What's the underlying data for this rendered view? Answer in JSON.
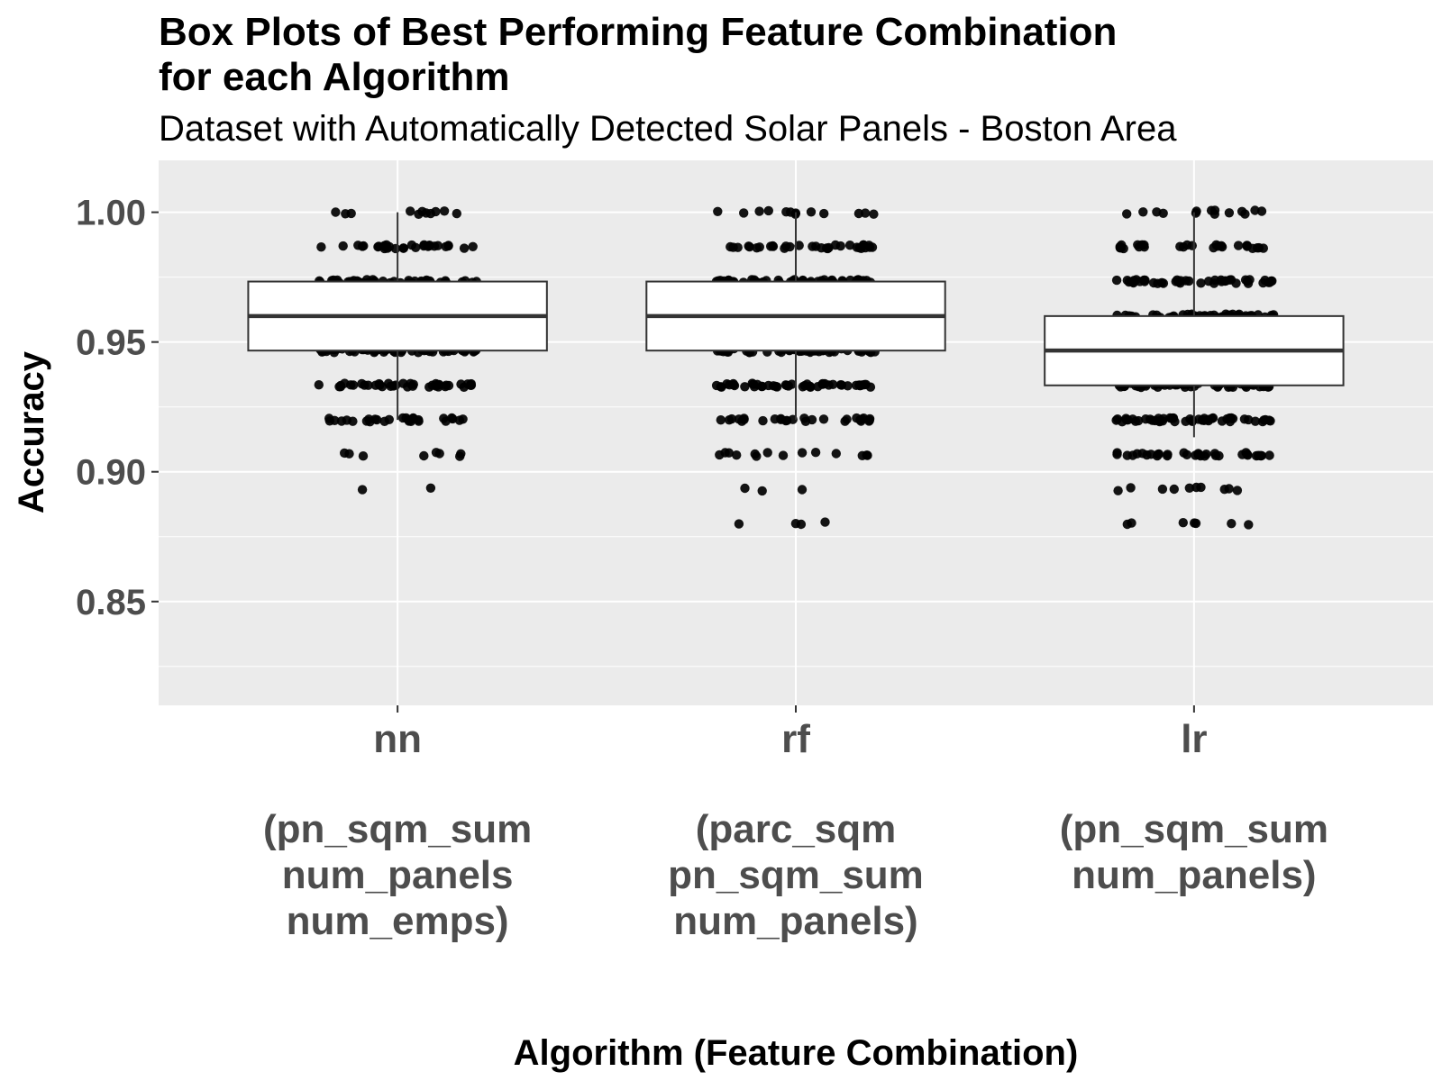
{
  "chart_data": {
    "type": "box",
    "title_line1": "Box Plots of Best Performing Feature Combination",
    "title_line2": "for each Algorithm",
    "subtitle": "Dataset with Automatically Detected Solar Panels - Boston Area",
    "xlabel": "Algorithm (Feature Combination)",
    "ylabel": "Accuracy",
    "ylim": [
      0.81,
      1.02
    ],
    "yticks": [
      "0.85",
      "0.90",
      "0.95",
      "1.00"
    ],
    "grid": true,
    "panel_background": "#ebebeb",
    "point_color": "#000000",
    "categories": [
      {
        "name": "nn",
        "features": [
          "(pn_sqm_sum",
          "num_panels",
          "num_emps)"
        ],
        "box": {
          "q1": 0.9467,
          "median": 0.96,
          "q3": 0.9733,
          "whisker_low": 0.92,
          "whisker_high": 1.0
        },
        "point_levels": [
          {
            "value": 1.0,
            "count": 11
          },
          {
            "value": 0.9867,
            "count": 30
          },
          {
            "value": 0.9733,
            "count": 50
          },
          {
            "value": 0.96,
            "count": 60
          },
          {
            "value": 0.9467,
            "count": 55
          },
          {
            "value": 0.9333,
            "count": 40
          },
          {
            "value": 0.92,
            "count": 28
          },
          {
            "value": 0.9067,
            "count": 8
          },
          {
            "value": 0.8933,
            "count": 2
          }
        ]
      },
      {
        "name": "rf",
        "features": [
          "(parc_sqm",
          "pn_sqm_sum",
          "num_panels)"
        ],
        "box": {
          "q1": 0.9467,
          "median": 0.96,
          "q3": 0.9733,
          "whisker_low": 0.92,
          "whisker_high": 1.0
        },
        "point_levels": [
          {
            "value": 1.0,
            "count": 13
          },
          {
            "value": 0.9867,
            "count": 32
          },
          {
            "value": 0.9733,
            "count": 55
          },
          {
            "value": 0.96,
            "count": 60
          },
          {
            "value": 0.9467,
            "count": 55
          },
          {
            "value": 0.9333,
            "count": 45
          },
          {
            "value": 0.92,
            "count": 28
          },
          {
            "value": 0.9067,
            "count": 14
          },
          {
            "value": 0.8933,
            "count": 3
          },
          {
            "value": 0.88,
            "count": 4
          }
        ]
      },
      {
        "name": "lr",
        "features": [
          "(pn_sqm_sum",
          "num_panels)"
        ],
        "box": {
          "q1": 0.9333,
          "median": 0.9467,
          "q3": 0.96,
          "whisker_low": 0.9133,
          "whisker_high": 1.0
        },
        "point_levels": [
          {
            "value": 1.0,
            "count": 14
          },
          {
            "value": 0.9867,
            "count": 28
          },
          {
            "value": 0.9733,
            "count": 45
          },
          {
            "value": 0.96,
            "count": 55
          },
          {
            "value": 0.9467,
            "count": 60
          },
          {
            "value": 0.9333,
            "count": 55
          },
          {
            "value": 0.92,
            "count": 50
          },
          {
            "value": 0.9067,
            "count": 35
          },
          {
            "value": 0.8933,
            "count": 10
          },
          {
            "value": 0.88,
            "count": 7
          }
        ]
      }
    ]
  }
}
